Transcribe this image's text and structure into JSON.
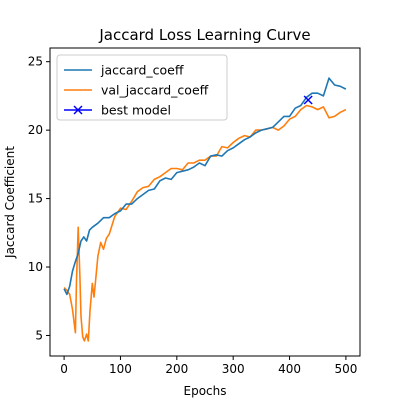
{
  "chart_data": {
    "type": "line",
    "title": "Jaccard Loss Learning Curve",
    "xlabel": "Epochs",
    "ylabel": "Jaccard Coefficient",
    "xlim": [
      -25,
      525
    ],
    "ylim": [
      3.5,
      26
    ],
    "xticks": [
      0,
      100,
      200,
      300,
      400,
      500
    ],
    "yticks": [
      5,
      10,
      15,
      20,
      25
    ],
    "legend_position": "top-left",
    "grid": false,
    "series": [
      {
        "name": "jaccard_coeff",
        "color": "#1f77b4",
        "x": [
          0,
          5,
          10,
          15,
          20,
          25,
          30,
          35,
          40,
          45,
          50,
          60,
          70,
          80,
          90,
          100,
          110,
          120,
          130,
          140,
          150,
          160,
          170,
          180,
          190,
          200,
          210,
          220,
          230,
          240,
          250,
          260,
          270,
          280,
          290,
          300,
          310,
          320,
          330,
          340,
          350,
          360,
          370,
          380,
          390,
          400,
          410,
          420,
          430,
          440,
          450,
          460,
          470,
          480,
          490,
          500
        ],
        "values": [
          8.4,
          8.0,
          8.6,
          9.7,
          10.4,
          11.0,
          11.9,
          12.2,
          11.9,
          12.7,
          12.9,
          13.2,
          13.6,
          13.6,
          13.9,
          14.1,
          14.6,
          14.6,
          15.0,
          15.3,
          15.6,
          15.7,
          16.3,
          16.5,
          16.4,
          16.9,
          17.0,
          17.1,
          17.3,
          17.6,
          17.4,
          18.1,
          18.2,
          18.1,
          18.5,
          18.7,
          19.0,
          19.3,
          19.5,
          19.8,
          20.0,
          20.1,
          20.2,
          20.6,
          21.0,
          21.0,
          21.6,
          21.8,
          22.4,
          22.7,
          22.7,
          22.5,
          23.8,
          23.3,
          23.2,
          23.0
        ]
      },
      {
        "name": "val_jaccard_coeff",
        "color": "#ff7f0e",
        "x": [
          0,
          5,
          10,
          15,
          20,
          22,
          25,
          28,
          30,
          33,
          36,
          40,
          43,
          46,
          50,
          53,
          56,
          60,
          65,
          70,
          75,
          80,
          90,
          100,
          110,
          120,
          130,
          140,
          150,
          160,
          170,
          180,
          190,
          200,
          210,
          220,
          230,
          240,
          250,
          260,
          270,
          280,
          290,
          300,
          310,
          320,
          330,
          340,
          350,
          360,
          370,
          380,
          390,
          400,
          410,
          420,
          430,
          440,
          450,
          460,
          470,
          480,
          490,
          500
        ],
        "values": [
          8.5,
          8.3,
          8.0,
          6.9,
          5.2,
          9.0,
          12.9,
          9.3,
          6.4,
          4.9,
          4.6,
          5.1,
          4.6,
          6.8,
          8.8,
          7.8,
          9.1,
          10.8,
          11.8,
          11.3,
          12.1,
          12.4,
          13.7,
          14.3,
          14.2,
          14.8,
          15.5,
          15.8,
          15.9,
          16.4,
          16.6,
          16.9,
          17.2,
          17.2,
          17.1,
          17.6,
          17.6,
          17.8,
          17.8,
          18.1,
          18.1,
          18.8,
          18.7,
          19.1,
          19.4,
          19.6,
          19.5,
          20.0,
          20.0,
          20.1,
          20.2,
          20.0,
          20.3,
          20.8,
          21.0,
          21.5,
          21.8,
          21.7,
          21.5,
          21.7,
          20.9,
          21.0,
          21.3,
          21.5
        ]
      },
      {
        "name": "best model",
        "color": "#0000ff",
        "marker": "x",
        "x": [
          433
        ],
        "values": [
          22.2
        ]
      }
    ]
  }
}
